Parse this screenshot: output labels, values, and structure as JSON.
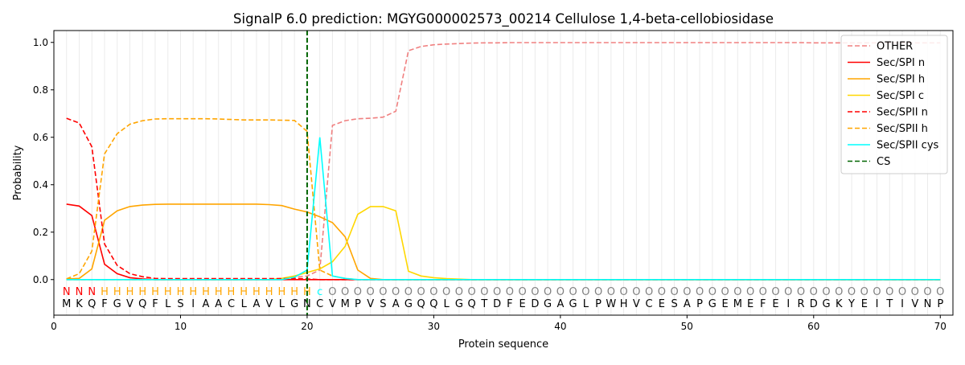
{
  "chart_data": {
    "type": "line",
    "title": "SignalP 6.0 prediction: MGYG000002573_00214 Cellulose 1,4-beta-cellobiosidase",
    "xlabel": "Protein sequence",
    "ylabel": "Probability",
    "xlim": [
      0,
      71
    ],
    "ylim": [
      -0.15,
      1.05
    ],
    "xticks": [
      0,
      10,
      20,
      30,
      40,
      50,
      60,
      70
    ],
    "yticks": [
      0.0,
      0.2,
      0.4,
      0.6,
      0.8,
      1.0
    ],
    "ytick_labels": [
      "0.0",
      "0.2",
      "0.4",
      "0.6",
      "0.8",
      "1.0"
    ],
    "grid": "vertical lines at each residue",
    "legend_position": "top-right",
    "sequence": "MKQFGVQFLSIAACLAVLGNCVMPVSAGQQLGQTDFEDGAGLPWHVCESAPGEMEFEIRDGKYEITIVNP",
    "labels": "NNNHHHHHHHHHHHHHHHHHcOOOOOOOOOOOOOOOOOOOOOOOOOOOOOOOOOOOOOOOOOOOOOOOOO",
    "label_colors": {
      "N": "#ff0000",
      "H": "#ffa500",
      "c": "#00ffff",
      "O": "#808080"
    },
    "cleavage_site": 20,
    "series": [
      {
        "name": "OTHER",
        "color": "#f08080",
        "dash": true,
        "values": [
          0,
          0,
          0,
          0,
          0,
          0,
          0,
          0,
          0,
          0,
          0,
          0,
          0,
          0,
          0,
          0,
          0,
          0.005,
          0.01,
          0.015,
          0.04,
          0.65,
          0.67,
          0.678,
          0.68,
          0.685,
          0.71,
          0.965,
          0.983,
          0.99,
          0.993,
          0.995,
          0.997,
          0.998,
          0.998,
          0.999,
          0.999,
          0.999,
          0.999,
          0.999,
          0.999,
          0.999,
          0.999,
          0.999,
          0.999,
          0.999,
          0.999,
          0.999,
          0.999,
          0.999,
          0.999,
          0.999,
          0.999,
          0.999,
          0.999,
          0.999,
          0.999,
          0.999,
          0.999,
          0.998,
          0.998,
          0.998,
          0.998,
          0.998,
          0.998,
          0.998,
          0.998,
          0.998,
          0.998,
          0.998
        ]
      },
      {
        "name": "Sec/SPI n",
        "color": "#ff0000",
        "dash": false,
        "values": [
          0.318,
          0.31,
          0.27,
          0.065,
          0.025,
          0.008,
          0.003,
          0,
          0,
          0,
          0,
          0,
          0,
          0,
          0,
          0,
          0,
          0,
          0,
          0,
          0,
          0,
          0,
          0,
          0,
          0,
          0,
          0,
          0,
          0,
          0,
          0,
          0,
          0,
          0,
          0,
          0,
          0,
          0,
          0,
          0,
          0,
          0,
          0,
          0,
          0,
          0,
          0,
          0,
          0,
          0,
          0,
          0,
          0,
          0,
          0,
          0,
          0,
          0,
          0,
          0,
          0,
          0,
          0,
          0,
          0,
          0,
          0,
          0,
          0
        ]
      },
      {
        "name": "Sec/SPI h",
        "color": "#ffa500",
        "dash": false,
        "values": [
          0.003,
          0.005,
          0.045,
          0.25,
          0.29,
          0.308,
          0.314,
          0.317,
          0.318,
          0.318,
          0.318,
          0.318,
          0.318,
          0.318,
          0.318,
          0.318,
          0.316,
          0.312,
          0.297,
          0.285,
          0.265,
          0.24,
          0.18,
          0.04,
          0.005,
          0,
          0,
          0,
          0,
          0,
          0,
          0,
          0,
          0,
          0,
          0,
          0,
          0,
          0,
          0,
          0,
          0,
          0,
          0,
          0,
          0,
          0,
          0,
          0,
          0,
          0,
          0,
          0,
          0,
          0,
          0,
          0,
          0,
          0,
          0,
          0,
          0,
          0,
          0,
          0,
          0,
          0,
          0,
          0,
          0
        ]
      },
      {
        "name": "Sec/SPI c",
        "color": "#ffd700",
        "dash": false,
        "values": [
          0,
          0,
          0,
          0,
          0,
          0,
          0,
          0,
          0,
          0,
          0,
          0,
          0,
          0,
          0,
          0,
          0,
          0.005,
          0.015,
          0.03,
          0.045,
          0.075,
          0.14,
          0.275,
          0.308,
          0.308,
          0.29,
          0.035,
          0.015,
          0.008,
          0.004,
          0.002,
          0,
          0,
          0,
          0,
          0,
          0,
          0,
          0,
          0,
          0,
          0,
          0,
          0,
          0,
          0,
          0,
          0,
          0,
          0,
          0,
          0,
          0,
          0,
          0,
          0,
          0,
          0,
          0,
          0,
          0,
          0,
          0,
          0,
          0,
          0,
          0,
          0,
          0
        ]
      },
      {
        "name": "Sec/SPII n",
        "color": "#ff0000",
        "dash": true,
        "values": [
          0.68,
          0.66,
          0.56,
          0.15,
          0.06,
          0.025,
          0.012,
          0.005,
          0.004,
          0.004,
          0.004,
          0.004,
          0.004,
          0.004,
          0.004,
          0.004,
          0.004,
          0.004,
          0.005,
          0.003,
          0,
          0,
          0,
          0,
          0,
          0,
          0,
          0,
          0,
          0,
          0,
          0,
          0,
          0,
          0,
          0,
          0,
          0,
          0,
          0,
          0,
          0,
          0,
          0,
          0,
          0,
          0,
          0,
          0,
          0,
          0,
          0,
          0,
          0,
          0,
          0,
          0,
          0,
          0,
          0,
          0,
          0,
          0,
          0,
          0,
          0,
          0,
          0,
          0,
          0
        ]
      },
      {
        "name": "Sec/SPII h",
        "color": "#ffa500",
        "dash": true,
        "values": [
          0.003,
          0.025,
          0.12,
          0.53,
          0.615,
          0.655,
          0.67,
          0.677,
          0.678,
          0.678,
          0.678,
          0.678,
          0.677,
          0.675,
          0.673,
          0.673,
          0.673,
          0.672,
          0.671,
          0.625,
          0.04,
          0.015,
          0.005,
          0,
          0,
          0,
          0,
          0,
          0,
          0,
          0,
          0,
          0,
          0,
          0,
          0,
          0,
          0,
          0,
          0,
          0,
          0,
          0,
          0,
          0,
          0,
          0,
          0,
          0,
          0,
          0,
          0,
          0,
          0,
          0,
          0,
          0,
          0,
          0,
          0,
          0,
          0,
          0,
          0,
          0,
          0,
          0,
          0,
          0,
          0
        ]
      },
      {
        "name": "Sec/SPII cys",
        "color": "#00ffff",
        "dash": false,
        "values": [
          0,
          0,
          0,
          0,
          0,
          0,
          0,
          0,
          0,
          0,
          0,
          0,
          0,
          0,
          0,
          0,
          0,
          0,
          0.01,
          0.04,
          0.6,
          0.015,
          0.005,
          0,
          0,
          0,
          0,
          0,
          0,
          0,
          0,
          0,
          0,
          0,
          0,
          0,
          0,
          0,
          0,
          0,
          0,
          0,
          0,
          0,
          0,
          0,
          0,
          0,
          0,
          0,
          0,
          0,
          0,
          0,
          0,
          0,
          0,
          0,
          0,
          0,
          0,
          0,
          0,
          0,
          0,
          0,
          0,
          0,
          0,
          0
        ]
      },
      {
        "name": "CS",
        "color": "#006400",
        "dash": true,
        "vertical_at": 20
      }
    ]
  }
}
